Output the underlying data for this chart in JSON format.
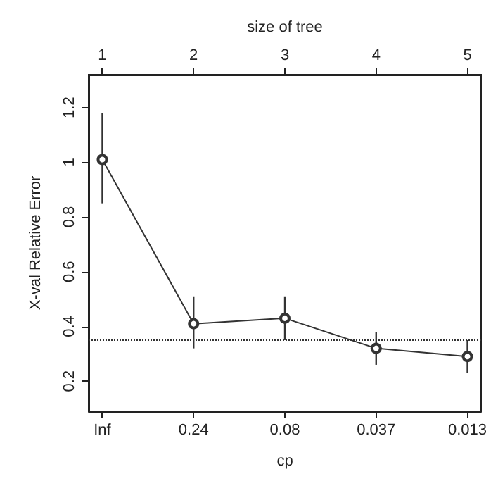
{
  "chart_data": {
    "type": "line",
    "x2label": "size of tree",
    "xlabel": "cp",
    "ylabel": "X-val Relative Error",
    "categories": [
      "Inf",
      "0.24",
      "0.08",
      "0.037",
      "0.013"
    ],
    "values": [
      1.01,
      0.41,
      0.43,
      0.32,
      0.29
    ],
    "errors": [
      [
        0.85,
        1.18
      ],
      [
        0.32,
        0.51
      ],
      [
        0.35,
        0.51
      ],
      [
        0.26,
        0.38
      ],
      [
        0.23,
        0.35
      ]
    ],
    "color": "#333333",
    "marker": "circle",
    "line_style": "solid",
    "x2lim": [
      0.85,
      5.15
    ],
    "x2ticks": [
      1,
      2,
      3,
      4,
      5
    ],
    "ylim": [
      0.09,
      1.32
    ],
    "yticks": [
      0.2,
      0.4,
      0.6,
      0.8,
      1.0,
      1.2
    ],
    "ref_lines": [
      {
        "axis": "y",
        "value": 0.35,
        "line_style": "dotted",
        "color": "#333333"
      }
    ]
  }
}
